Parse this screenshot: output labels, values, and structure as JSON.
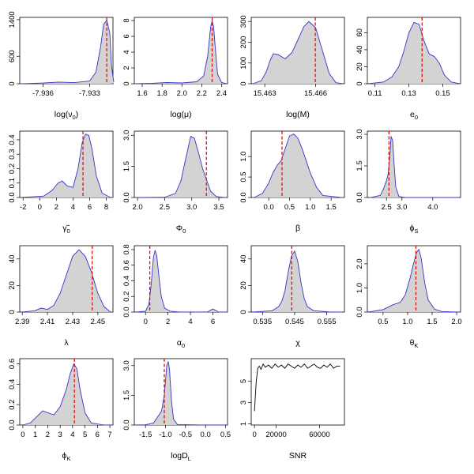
{
  "colors": {
    "fill": "#d3d3d3",
    "curve": "#3535c8",
    "marker": "#e01010",
    "axis": "#000000"
  },
  "chart_data": [
    {
      "type": "area",
      "xlabel": "log(ν",
      "xlabel_sub": "0",
      "xlabel_suffix": ")",
      "xlim": [
        -7.9375,
        -7.9315
      ],
      "ylim": [
        0,
        1450
      ],
      "xticks": [
        -7.936,
        -7.933
      ],
      "xtick_labels": [
        "-7.936",
        "-7.933"
      ],
      "yticks": [
        0,
        600,
        1400
      ],
      "ytick_labels": [
        "0",
        "600",
        "1400"
      ],
      "marker": -7.9319,
      "x": [
        -7.9373,
        -7.936,
        -7.935,
        -7.934,
        -7.933,
        -7.9326,
        -7.9323,
        -7.9321,
        -7.9319,
        -7.9317,
        -7.9316,
        -7.93145
      ],
      "y": [
        0,
        15,
        35,
        25,
        60,
        250,
        800,
        1300,
        1390,
        1100,
        400,
        40
      ]
    },
    {
      "type": "area",
      "xlabel": "log(μ)",
      "xlim": [
        1.52,
        2.46
      ],
      "ylim": [
        0,
        8.4
      ],
      "xticks": [
        1.6,
        1.8,
        2.0,
        2.2,
        2.4
      ],
      "xtick_labels": [
        "1.6",
        "1.8",
        "2.0",
        "2.2",
        "2.4"
      ],
      "yticks": [
        0,
        2,
        4,
        6,
        8
      ],
      "ytick_labels": [
        "0",
        "2",
        "4",
        "6",
        "8"
      ],
      "marker": 2.305,
      "x": [
        1.53,
        1.7,
        1.85,
        2.0,
        2.15,
        2.22,
        2.26,
        2.29,
        2.305,
        2.32,
        2.34,
        2.36,
        2.4,
        2.45
      ],
      "y": [
        0,
        0.05,
        0.15,
        0.1,
        0.25,
        1.0,
        3.5,
        7.2,
        7.95,
        7.2,
        4.0,
        1.2,
        0.15,
        0
      ]
    },
    {
      "type": "area",
      "xlabel": "log(M)",
      "xlim": [
        15.4622,
        15.4677
      ],
      "ylim": [
        0,
        320
      ],
      "xticks": [
        15.463,
        15.466
      ],
      "xtick_labels": [
        "15.463",
        "15.466"
      ],
      "yticks": [
        0,
        100,
        200,
        300
      ],
      "ytick_labels": [
        "0",
        "100",
        "200",
        "300"
      ],
      "marker": 15.46598,
      "x": [
        15.4623,
        15.4628,
        15.4631,
        15.4633,
        15.4635,
        15.4638,
        15.4642,
        15.4646,
        15.465,
        15.4653,
        15.4656,
        15.466,
        15.4664,
        15.4668,
        15.4672,
        15.4676
      ],
      "y": [
        0,
        15,
        60,
        110,
        145,
        140,
        120,
        150,
        220,
        275,
        300,
        270,
        160,
        50,
        5,
        0
      ]
    },
    {
      "type": "area",
      "xlabel": "e",
      "xlabel_sub": "0",
      "xlim": [
        0.1055,
        0.1605
      ],
      "ylim": [
        0,
        78
      ],
      "xticks": [
        0.11,
        0.13,
        0.15
      ],
      "xtick_labels": [
        "0.11",
        "0.13",
        "0.15"
      ],
      "yticks": [
        0,
        20,
        40,
        60
      ],
      "ytick_labels": [
        "0",
        "20",
        "40",
        "60"
      ],
      "marker": 0.1378,
      "x": [
        0.106,
        0.115,
        0.12,
        0.124,
        0.127,
        0.13,
        0.133,
        0.136,
        0.139,
        0.142,
        0.145,
        0.148,
        0.151,
        0.155,
        0.16
      ],
      "y": [
        0,
        2,
        8,
        20,
        38,
        60,
        72,
        70,
        50,
        35,
        32,
        24,
        10,
        2,
        0
      ]
    },
    {
      "type": "area",
      "xlabel": "γ̃",
      "xlabel_sub": "0",
      "xlim": [
        -2.4,
        8.8
      ],
      "ylim": [
        0,
        0.46
      ],
      "xticks": [
        -2,
        0,
        2,
        4,
        6,
        8
      ],
      "xtick_labels": [
        "-2",
        "0",
        "2",
        "4",
        "6",
        "8"
      ],
      "yticks": [
        0.0,
        0.1,
        0.2,
        0.3,
        0.4
      ],
      "ytick_labels": [
        "0.0",
        "0.1",
        "0.2",
        "0.3",
        "0.4"
      ],
      "marker": 5.2,
      "x": [
        -2.2,
        0.5,
        1.5,
        2.2,
        2.7,
        3.3,
        4.0,
        4.6,
        5.1,
        5.5,
        5.9,
        6.3,
        6.8,
        7.5,
        8.5
      ],
      "y": [
        0,
        0.01,
        0.05,
        0.1,
        0.115,
        0.08,
        0.07,
        0.2,
        0.38,
        0.44,
        0.43,
        0.33,
        0.15,
        0.03,
        0
      ]
    },
    {
      "type": "area",
      "xlabel": "Φ",
      "xlabel_sub": "0",
      "xlim": [
        1.94,
        3.66
      ],
      "ylim": [
        0,
        3.2
      ],
      "xticks": [
        2.0,
        2.5,
        3.0,
        3.5
      ],
      "xtick_labels": [
        "2.0",
        "2.5",
        "3.0",
        "3.5"
      ],
      "yticks": [
        0.0,
        1.5,
        3.0
      ],
      "ytick_labels": [
        "0.0",
        "1.5",
        "3.0"
      ],
      "marker": 3.27,
      "x": [
        2.0,
        2.5,
        2.7,
        2.8,
        2.9,
        2.98,
        3.05,
        3.12,
        3.2,
        3.28,
        3.35,
        3.45,
        3.6
      ],
      "y": [
        0,
        0.01,
        0.2,
        0.8,
        2.0,
        2.95,
        2.85,
        2.2,
        1.4,
        0.8,
        0.3,
        0.05,
        0
      ]
    },
    {
      "type": "area",
      "xlabel": "β",
      "xlim": [
        -0.42,
        1.82
      ],
      "ylim": [
        0,
        1.62
      ],
      "xticks": [
        0.0,
        0.5,
        1.0,
        1.5
      ],
      "xtick_labels": [
        "0.0",
        "0.5",
        "1.0",
        "1.5"
      ],
      "yticks": [
        0.0,
        0.5,
        1.0
      ],
      "ytick_labels": [
        "0.0",
        "0.5",
        "1.0"
      ],
      "marker": 0.32,
      "x": [
        -0.35,
        -0.15,
        0.0,
        0.1,
        0.2,
        0.3,
        0.4,
        0.5,
        0.6,
        0.7,
        0.8,
        0.9,
        1.0,
        1.15,
        1.3,
        1.75
      ],
      "y": [
        0,
        0.1,
        0.35,
        0.6,
        0.78,
        0.9,
        1.2,
        1.5,
        1.55,
        1.45,
        1.2,
        0.9,
        0.6,
        0.25,
        0.05,
        0
      ]
    },
    {
      "type": "area",
      "xlabel": "ϕ",
      "xlabel_sub": "S",
      "xlim": [
        1.88,
        4.9
      ],
      "ylim": [
        0,
        3.15
      ],
      "xticks": [
        2.5,
        3.0,
        4.0
      ],
      "xtick_labels": [
        "2.5",
        "3.0",
        "4.0"
      ],
      "yticks": [
        0.0,
        1.5,
        3.0
      ],
      "ytick_labels": [
        "0.0",
        "1.5",
        "3.0"
      ],
      "marker": 2.58,
      "x": [
        2.0,
        2.3,
        2.4,
        2.5,
        2.55,
        2.6,
        2.65,
        2.7,
        2.75,
        2.8,
        2.9,
        3.1,
        4.8
      ],
      "y": [
        0,
        0.1,
        0.4,
        0.8,
        1.1,
        1.8,
        2.9,
        2.7,
        1.5,
        0.5,
        0.05,
        0,
        0
      ]
    },
    {
      "type": "area",
      "xlabel": "λ",
      "xlim": [
        2.388,
        2.462
      ],
      "ylim": [
        0,
        50
      ],
      "xticks": [
        2.39,
        2.41,
        2.43,
        2.45
      ],
      "xtick_labels": [
        "2.39",
        "2.41",
        "2.43",
        "2.45"
      ],
      "yticks": [
        0,
        20,
        40
      ],
      "ytick_labels": [
        "0",
        "20",
        "40"
      ],
      "marker": 2.4455,
      "x": [
        2.39,
        2.4,
        2.405,
        2.41,
        2.415,
        2.42,
        2.425,
        2.43,
        2.435,
        2.44,
        2.445,
        2.45,
        2.455,
        2.46
      ],
      "y": [
        0,
        1,
        3,
        2,
        5,
        14,
        28,
        42,
        47,
        42,
        30,
        14,
        4,
        0
      ]
    },
    {
      "type": "area",
      "xlabel": "α",
      "xlabel_sub": "0",
      "xlim": [
        -1.0,
        7.3
      ],
      "ylim": [
        0,
        0.85
      ],
      "xticks": [
        0,
        2,
        4,
        6
      ],
      "xtick_labels": [
        "0",
        "2",
        "4",
        "6"
      ],
      "yticks": [
        0.0,
        0.2,
        0.4,
        0.6,
        0.8
      ],
      "ytick_labels": [
        "0.0",
        "0.2",
        "0.4",
        "0.6",
        "0.8"
      ],
      "marker": 0.38,
      "x": [
        -0.8,
        0.0,
        0.3,
        0.5,
        0.7,
        0.85,
        1.0,
        1.2,
        1.4,
        1.7,
        2.2,
        3.0,
        5.5,
        6.0,
        6.5,
        7.2
      ],
      "y": [
        0,
        0.01,
        0.1,
        0.35,
        0.7,
        0.79,
        0.72,
        0.45,
        0.2,
        0.05,
        0.01,
        0,
        0,
        0.04,
        0,
        0
      ]
    },
    {
      "type": "area",
      "xlabel": "χ",
      "xlim": [
        0.5315,
        0.5605
      ],
      "ylim": [
        0,
        50
      ],
      "xticks": [
        0.535,
        0.545,
        0.555
      ],
      "xtick_labels": [
        "0.535",
        "0.545",
        "0.555"
      ],
      "yticks": [
        0,
        20,
        40
      ],
      "ytick_labels": [
        "0",
        "20",
        "40"
      ],
      "marker": 0.5441,
      "x": [
        0.532,
        0.538,
        0.54,
        0.541,
        0.542,
        0.543,
        0.544,
        0.545,
        0.546,
        0.547,
        0.548,
        0.549,
        0.551,
        0.556,
        0.56
      ],
      "y": [
        0,
        1,
        4,
        8,
        16,
        30,
        42,
        46,
        38,
        22,
        10,
        4,
        1,
        0,
        0
      ]
    },
    {
      "type": "area",
      "xlabel": "θ",
      "xlabel_sub": "K",
      "xlim": [
        0.18,
        2.08
      ],
      "ylim": [
        0,
        2.75
      ],
      "xticks": [
        0.5,
        1.0,
        1.5,
        2.0
      ],
      "xtick_labels": [
        "0.5",
        "1.0",
        "1.5",
        "2.0"
      ],
      "yticks": [
        0.0,
        1.0,
        2.0
      ],
      "ytick_labels": [
        "0.0",
        "1.0",
        "2.0"
      ],
      "marker": 1.17,
      "x": [
        0.2,
        0.5,
        0.7,
        0.85,
        0.95,
        1.05,
        1.12,
        1.18,
        1.23,
        1.28,
        1.35,
        1.42,
        1.55,
        1.7,
        2.0
      ],
      "y": [
        0,
        0.1,
        0.3,
        0.4,
        0.7,
        1.4,
        2.0,
        2.45,
        2.6,
        2.2,
        1.2,
        0.5,
        0.12,
        0.02,
        0
      ]
    },
    {
      "type": "area",
      "xlabel": "ϕ",
      "xlabel_sub": "K",
      "xlim": [
        -0.25,
        7.25
      ],
      "ylim": [
        0,
        0.65
      ],
      "xticks": [
        0,
        1,
        2,
        3,
        4,
        5,
        6,
        7
      ],
      "xtick_labels": [
        "0",
        "1",
        "2",
        "3",
        "4",
        "5",
        "6",
        "7"
      ],
      "yticks": [
        0.0,
        0.2,
        0.4,
        0.6
      ],
      "ytick_labels": [
        "0.0",
        "0.2",
        "0.4",
        "0.6"
      ],
      "marker": 4.15,
      "x": [
        0.0,
        0.6,
        1.1,
        1.6,
        2.0,
        2.5,
        3.0,
        3.5,
        3.8,
        4.1,
        4.35,
        4.6,
        5.0,
        5.5,
        6.5,
        7.0
      ],
      "y": [
        0,
        0.02,
        0.08,
        0.14,
        0.12,
        0.1,
        0.18,
        0.35,
        0.5,
        0.6,
        0.55,
        0.35,
        0.12,
        0.02,
        0,
        0
      ]
    },
    {
      "type": "area",
      "xlabel": "logD",
      "xlabel_sub": "L",
      "xlim": [
        -1.78,
        0.55
      ],
      "ylim": [
        0,
        3.35
      ],
      "xticks": [
        -1.5,
        -1.0,
        -0.5,
        0.0,
        0.5
      ],
      "xtick_labels": [
        "-1.5",
        "-1.0",
        "-0.5",
        "0.0",
        "0.5"
      ],
      "yticks": [
        0.0,
        1.5,
        3.0
      ],
      "ytick_labels": [
        "0.0",
        "1.5",
        "3.0"
      ],
      "marker": -1.03,
      "x": [
        -1.75,
        -1.5,
        -1.3,
        -1.2,
        -1.1,
        -1.03,
        -0.97,
        -0.93,
        -0.9,
        -0.85,
        -0.8,
        -0.7,
        0.0,
        0.5
      ],
      "y": [
        0,
        0.01,
        0.1,
        0.4,
        0.7,
        1.5,
        3.0,
        3.2,
        2.8,
        1.2,
        0.3,
        0.02,
        0,
        0
      ]
    },
    {
      "type": "line",
      "xlabel": "SNR",
      "xlim": [
        -3000,
        83000
      ],
      "ylim": [
        0.9,
        7.1
      ],
      "xticks": [
        0,
        20000,
        60000
      ],
      "xtick_labels": [
        "0",
        "20000",
        "60000"
      ],
      "yticks": [
        1,
        3,
        5
      ],
      "ytick_labels": [
        "1",
        "3",
        "5"
      ],
      "x": [
        0,
        1500,
        3000,
        4500,
        6000,
        8000,
        10000,
        13000,
        16000,
        19000,
        22000,
        25000,
        28000,
        31000,
        34000,
        37000,
        40000,
        43000,
        46000,
        49000,
        52000,
        55000,
        58000,
        61000,
        64000,
        67000,
        70000,
        73000,
        76000,
        79000
      ],
      "y": [
        2.2,
        4.8,
        6.2,
        6.4,
        6.1,
        6.6,
        6.3,
        6.5,
        6.2,
        6.6,
        6.3,
        6.5,
        6.2,
        6.6,
        6.4,
        6.2,
        6.5,
        6.3,
        6.6,
        6.2,
        6.4,
        6.6,
        6.3,
        6.2,
        6.5,
        6.3,
        6.6,
        6.2,
        6.4,
        6.4
      ]
    }
  ]
}
